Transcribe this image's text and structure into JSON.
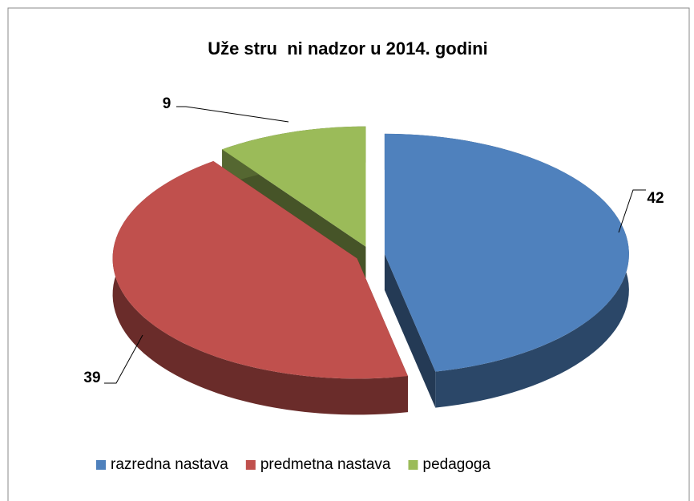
{
  "chart_data": {
    "type": "pie",
    "title": "Uže stru  ni nadzor u 2014. godini",
    "categories": [
      "razredna nastava",
      "predmetna nastava",
      "pedagoga"
    ],
    "values": [
      42,
      39,
      9
    ],
    "colors": [
      "#4f81bd",
      "#c0504d",
      "#9bbb59"
    ],
    "legend": "bottom"
  }
}
